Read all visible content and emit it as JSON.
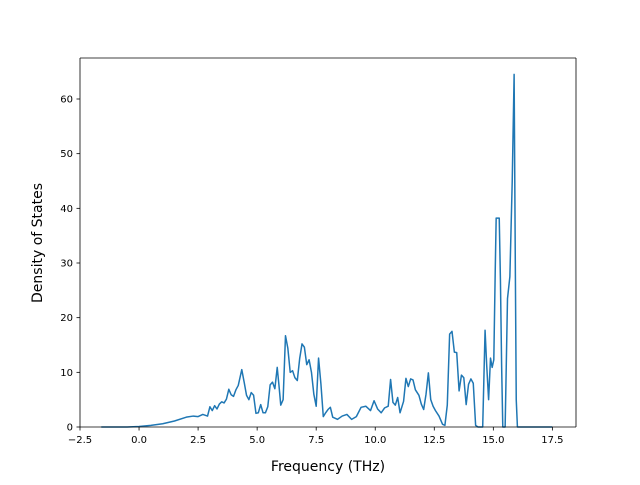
{
  "chart_data": {
    "type": "line",
    "title": "",
    "xlabel": "Frequency (THz)",
    "ylabel": "Density of States",
    "xlim": [
      -2.5,
      18.5
    ],
    "ylim": [
      0,
      67.5
    ],
    "x_ticks": [
      -2.5,
      0.0,
      2.5,
      5.0,
      7.5,
      10.0,
      12.5,
      15.0,
      17.5
    ],
    "x_tick_labels": [
      "−2.5",
      "0.0",
      "2.5",
      "5.0",
      "7.5",
      "10.0",
      "12.5",
      "15.0",
      "17.5"
    ],
    "y_ticks": [
      0,
      10,
      20,
      30,
      40,
      50,
      60
    ],
    "y_tick_labels": [
      "0",
      "10",
      "20",
      "30",
      "40",
      "50",
      "60"
    ],
    "grid": false,
    "legend": "none",
    "line_color": "#1f77b4",
    "series": [
      {
        "x": [
          -1.6,
          -0.5,
          0.0,
          0.5,
          1.0,
          1.5,
          2.0,
          2.3,
          2.5,
          2.7,
          2.9,
          3.0,
          3.1,
          3.2,
          3.3,
          3.4,
          3.5,
          3.6,
          3.7,
          3.8,
          3.9,
          4.0,
          4.1,
          4.2,
          4.35,
          4.45,
          4.55,
          4.65,
          4.75,
          4.85,
          4.95,
          5.05,
          5.15,
          5.25,
          5.35,
          5.45,
          5.55,
          5.65,
          5.75,
          5.85,
          5.92,
          6.0,
          6.1,
          6.2,
          6.3,
          6.4,
          6.5,
          6.6,
          6.7,
          6.8,
          6.9,
          7.0,
          7.1,
          7.2,
          7.3,
          7.4,
          7.5,
          7.6,
          7.7,
          7.8,
          7.9,
          8.0,
          8.1,
          8.2,
          8.4,
          8.6,
          8.8,
          9.0,
          9.2,
          9.4,
          9.6,
          9.8,
          9.95,
          10.1,
          10.25,
          10.4,
          10.55,
          10.65,
          10.75,
          10.85,
          10.95,
          11.05,
          11.2,
          11.3,
          11.4,
          11.5,
          11.6,
          11.7,
          11.85,
          11.95,
          12.05,
          12.15,
          12.25,
          12.35,
          12.45,
          12.55,
          12.7,
          12.85,
          12.95,
          13.05,
          13.15,
          13.25,
          13.35,
          13.45,
          13.55,
          13.65,
          13.75,
          13.85,
          13.95,
          14.05,
          14.15,
          14.25,
          14.35,
          14.45,
          14.55,
          14.65,
          14.72,
          14.8,
          14.88,
          14.95,
          15.02,
          15.08,
          15.12,
          15.18,
          15.25,
          15.3,
          15.35,
          15.4,
          15.45,
          15.5,
          15.6,
          15.7,
          15.8,
          15.88,
          15.93,
          15.97,
          16.02,
          16.08,
          16.5,
          17.5
        ],
        "y": [
          0.0,
          0.0,
          0.1,
          0.3,
          0.6,
          1.1,
          1.8,
          2.0,
          1.9,
          2.3,
          2.0,
          3.7,
          3.0,
          3.9,
          3.3,
          4.2,
          4.6,
          4.4,
          5.1,
          6.9,
          5.9,
          5.6,
          6.8,
          7.6,
          10.5,
          8.2,
          5.8,
          5.0,
          6.3,
          5.8,
          2.5,
          2.6,
          4.1,
          2.6,
          2.6,
          3.7,
          7.7,
          8.2,
          7.0,
          10.9,
          7.8,
          4.0,
          5.0,
          16.7,
          14.4,
          10.0,
          10.3,
          9.0,
          8.5,
          12.5,
          15.2,
          14.6,
          11.4,
          12.3,
          10.0,
          6.0,
          3.8,
          12.6,
          7.9,
          1.9,
          2.6,
          3.2,
          3.6,
          1.8,
          1.4,
          2.0,
          2.3,
          1.4,
          1.9,
          3.6,
          3.8,
          3.0,
          4.8,
          3.3,
          2.6,
          3.5,
          3.8,
          8.7,
          4.5,
          4.0,
          5.4,
          2.6,
          4.7,
          8.9,
          7.4,
          8.8,
          8.6,
          6.8,
          5.8,
          4.2,
          3.2,
          6.0,
          9.9,
          5.0,
          3.8,
          3.0,
          2.0,
          0.5,
          0.3,
          4.0,
          17.0,
          17.5,
          13.7,
          13.6,
          6.6,
          9.5,
          9.0,
          4.1,
          7.8,
          8.8,
          8.0,
          0.3,
          0.0,
          0.0,
          0.0,
          17.7,
          11.2,
          5.0,
          12.6,
          10.9,
          12.3,
          28.5,
          38.2,
          38.2,
          38.2,
          27.0,
          11.5,
          0.0,
          0.0,
          0.0,
          23.5,
          27.5,
          45.0,
          64.5,
          30.0,
          5.0,
          0.0,
          0.0,
          0.0,
          0.0
        ]
      }
    ]
  }
}
